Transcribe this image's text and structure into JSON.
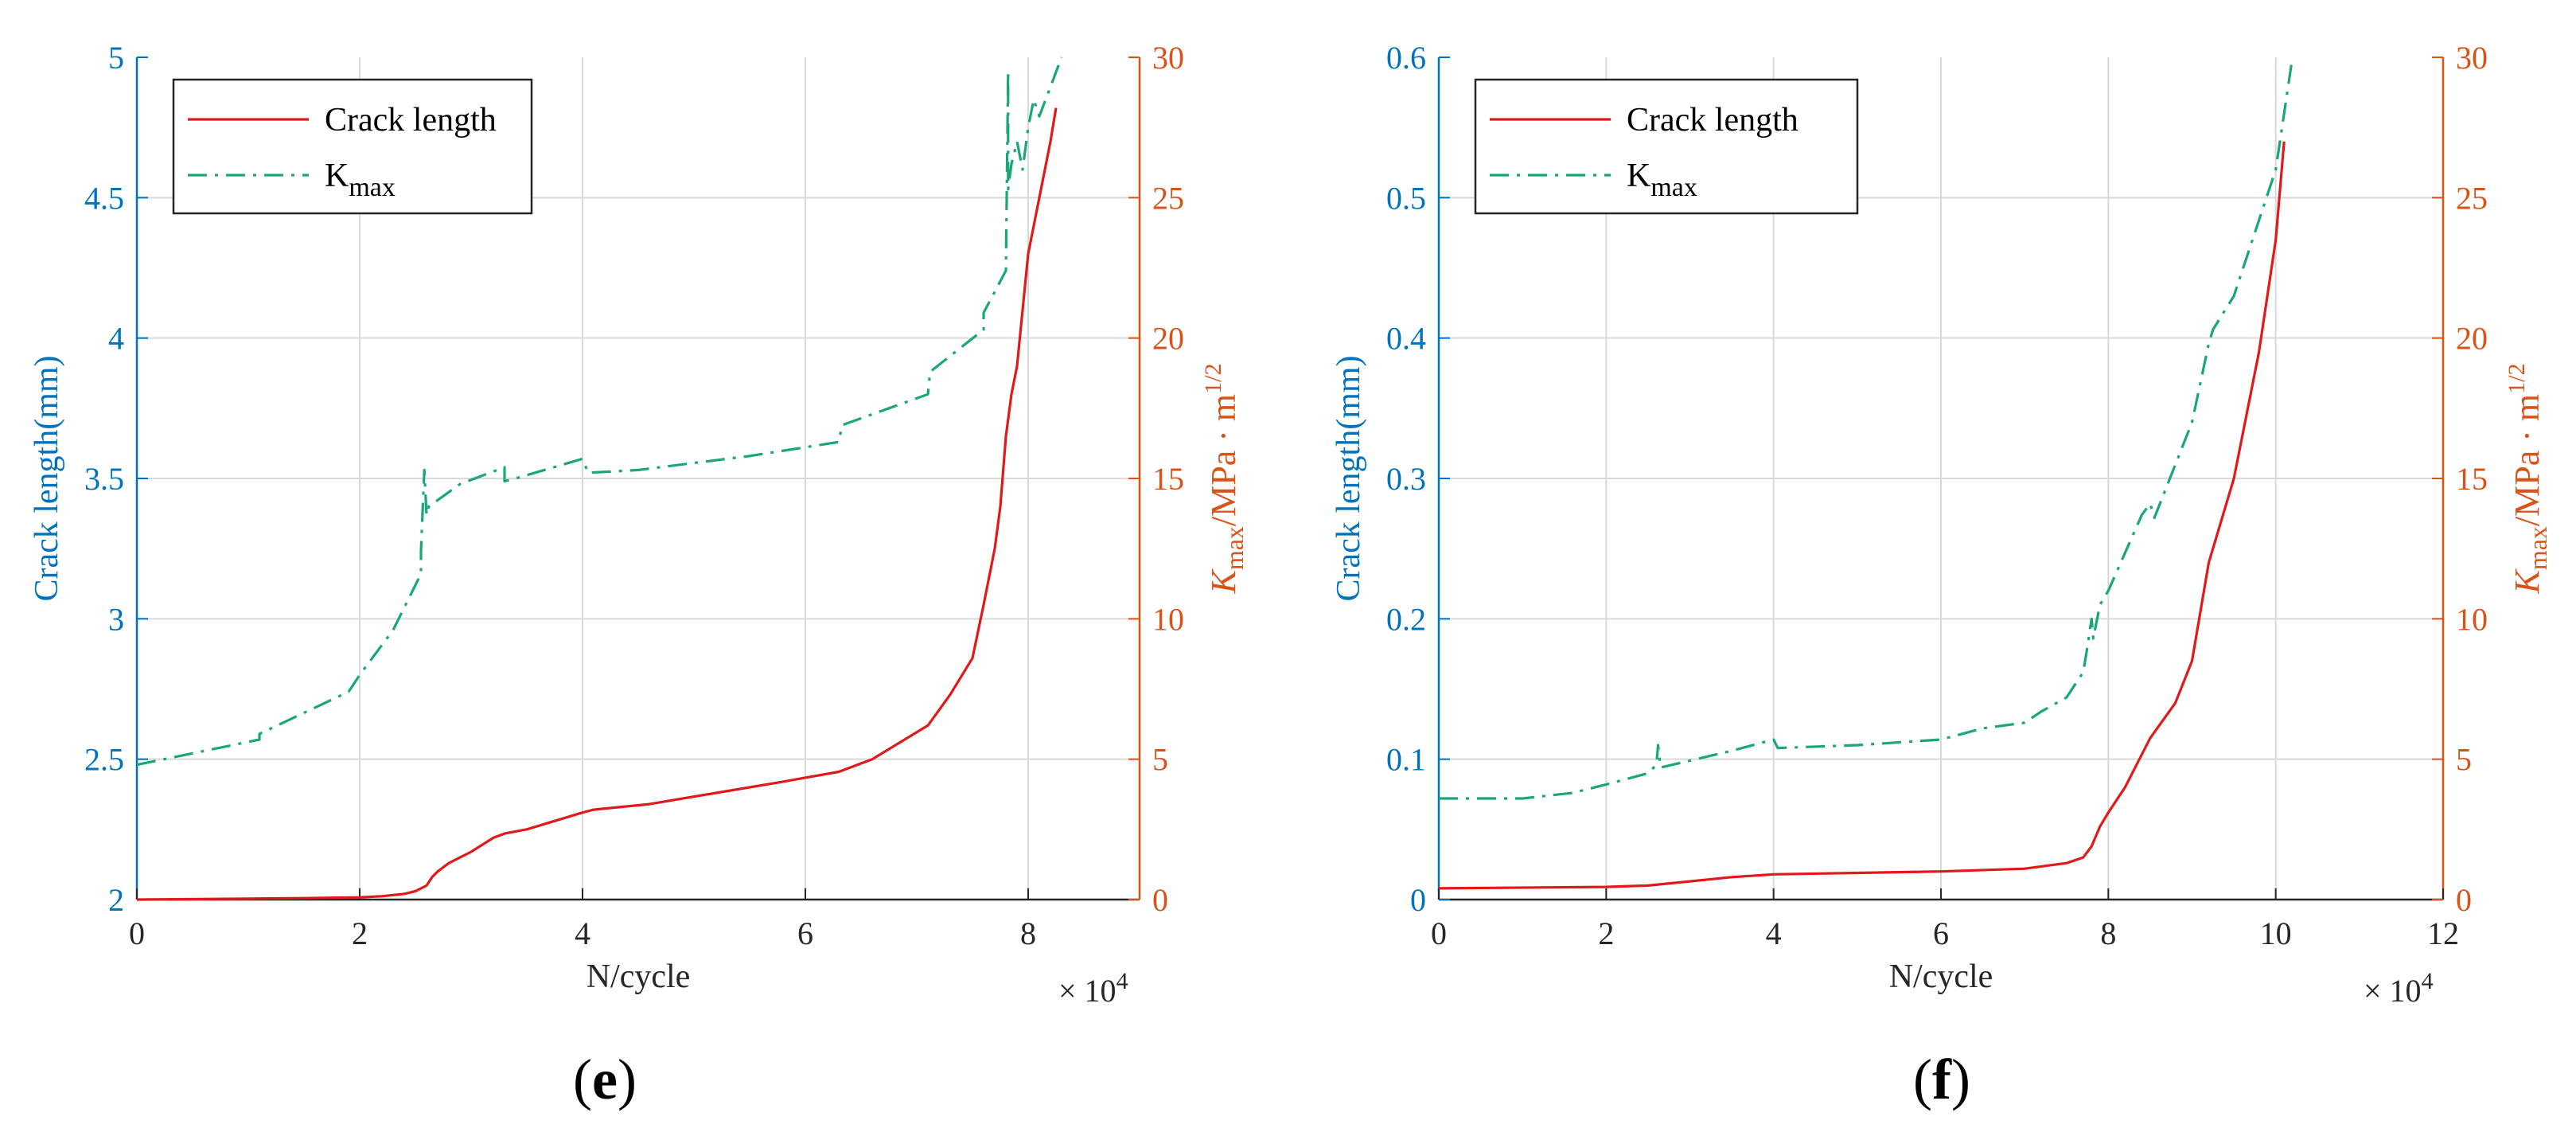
{
  "colors": {
    "left_axis": "#0072BD",
    "right_axis": "#D95319",
    "crack": "#E0191B",
    "kmax": "#1BA67A",
    "grid": "#D9D9D9",
    "axis_black": "#262626"
  },
  "chart_data": [
    {
      "type": "line",
      "panel_label": "(e)",
      "xlabel": "N/cycle",
      "x_exponent": "× 10",
      "x_exponent_power": "4",
      "xlim": [
        0,
        9
      ],
      "xticks": [
        0,
        2,
        4,
        6,
        8
      ],
      "xtick_labels": [
        "0",
        "2",
        "4",
        "6",
        "8"
      ],
      "ylabel_left": "Crack length(mm)",
      "ylim_left": [
        2,
        5
      ],
      "yticks_left": [
        2,
        2.5,
        3,
        3.5,
        4,
        4.5,
        5
      ],
      "ytick_labels_left": [
        "2",
        "2.5",
        "3",
        "3.5",
        "4",
        "4.5",
        "5"
      ],
      "ylabel_right": {
        "k": "K",
        "sub": "max",
        "rest": "/MPa · m",
        "sup": "1/2"
      },
      "ylim_right": [
        0,
        30
      ],
      "yticks_right": [
        0,
        5,
        10,
        15,
        20,
        25,
        30
      ],
      "ytick_labels_right": [
        "0",
        "5",
        "10",
        "15",
        "20",
        "25",
        "30"
      ],
      "legend": {
        "placement": "top-left",
        "crack_label": "Crack length",
        "kmax_label": "K",
        "kmax_sub": "max"
      },
      "series": [
        {
          "name": "Crack length",
          "axis": "left",
          "style": "solid",
          "x": [
            0,
            1,
            1.5,
            2,
            2.2,
            2.4,
            2.5,
            2.6,
            2.65,
            2.7,
            2.8,
            3.0,
            3.2,
            3.3,
            3.5,
            4.0,
            4.1,
            4.6,
            5.2,
            5.8,
            6.3,
            6.6,
            7.1,
            7.3,
            7.5,
            7.6,
            7.7,
            7.75,
            7.8,
            7.85,
            7.9,
            8.0,
            8.1,
            8.2,
            8.25
          ],
          "y": [
            2.0,
            2.003,
            2.005,
            2.008,
            2.012,
            2.02,
            2.03,
            2.05,
            2.08,
            2.1,
            2.13,
            2.17,
            2.22,
            2.235,
            2.25,
            2.31,
            2.32,
            2.34,
            2.38,
            2.42,
            2.455,
            2.5,
            2.62,
            2.73,
            2.86,
            3.05,
            3.25,
            3.4,
            3.65,
            3.8,
            3.9,
            4.3,
            4.5,
            4.7,
            4.82
          ]
        },
        {
          "name": "Kmax",
          "axis": "right",
          "style": "dashdot",
          "x": [
            0,
            1.1,
            1.1,
            1.9,
            2.0,
            2.3,
            2.55,
            2.55,
            2.58,
            2.6,
            2.62,
            2.9,
            3.3,
            3.3,
            3.4,
            4.0,
            4.05,
            4.5,
            5.5,
            6.3,
            6.33,
            7.1,
            7.12,
            7.6,
            7.6,
            7.8,
            7.82,
            7.82,
            7.85,
            7.9,
            7.95,
            8.0,
            8.05,
            8.1,
            8.3
          ],
          "y": [
            4.8,
            5.7,
            5.9,
            7.4,
            8.0,
            9.6,
            11.6,
            12.4,
            15.3,
            13.7,
            14.0,
            14.8,
            15.4,
            14.9,
            15.0,
            15.7,
            15.2,
            15.3,
            15.8,
            16.3,
            16.9,
            18.0,
            18.8,
            20.3,
            20.9,
            22.4,
            29.5,
            25.3,
            26.2,
            27.0,
            26.0,
            27.5,
            28.5,
            27.9,
            30.0
          ]
        }
      ]
    },
    {
      "type": "line",
      "panel_label": "(f)",
      "xlabel": "N/cycle",
      "x_exponent": "× 10",
      "x_exponent_power": "4",
      "xlim": [
        0,
        12
      ],
      "xticks": [
        0,
        2,
        4,
        6,
        8,
        10,
        12
      ],
      "xtick_labels": [
        "0",
        "2",
        "4",
        "6",
        "8",
        "10",
        "12"
      ],
      "ylabel_left": "Crack length(mm)",
      "ylim_left": [
        0,
        0.6
      ],
      "yticks_left": [
        0,
        0.1,
        0.2,
        0.3,
        0.4,
        0.5,
        0.6
      ],
      "ytick_labels_left": [
        "0",
        "0.1",
        "0.2",
        "0.3",
        "0.4",
        "0.5",
        "0.6"
      ],
      "ylabel_right": {
        "k": "K",
        "sub": "max",
        "rest": "/MPa · m",
        "sup": "1/2"
      },
      "ylim_right": [
        0,
        30
      ],
      "yticks_right": [
        0,
        5,
        10,
        15,
        20,
        25,
        30
      ],
      "ytick_labels_right": [
        "0",
        "5",
        "10",
        "15",
        "20",
        "25",
        "30"
      ],
      "legend": {
        "placement": "top-left",
        "crack_label": "Crack length",
        "kmax_label": "K",
        "kmax_sub": "max"
      },
      "series": [
        {
          "name": "Crack length",
          "axis": "left",
          "style": "solid",
          "x": [
            0,
            2,
            2.5,
            3,
            3.5,
            4,
            5,
            6,
            7,
            7.5,
            7.7,
            7.8,
            7.9,
            8.0,
            8.2,
            8.5,
            8.8,
            9.0,
            9.2,
            9.5,
            9.8,
            10.0,
            10.1
          ],
          "y": [
            0.008,
            0.009,
            0.01,
            0.013,
            0.016,
            0.018,
            0.019,
            0.02,
            0.022,
            0.026,
            0.03,
            0.038,
            0.052,
            0.062,
            0.08,
            0.115,
            0.14,
            0.17,
            0.24,
            0.3,
            0.39,
            0.47,
            0.54
          ]
        },
        {
          "name": "Kmax",
          "axis": "right",
          "style": "dashdot",
          "x": [
            0,
            1.0,
            1.6,
            2.0,
            2.5,
            2.6,
            2.62,
            2.65,
            3.5,
            4.0,
            4.05,
            5,
            6,
            6.5,
            7,
            7.2,
            7.5,
            7.7,
            7.75,
            7.8,
            7.82,
            7.9,
            8.0,
            8.4,
            8.5,
            8.55,
            9.0,
            9.2,
            9.25,
            9.5,
            10.0,
            10.2
          ],
          "y": [
            3.6,
            3.6,
            3.8,
            4.1,
            4.5,
            4.8,
            5.5,
            4.7,
            5.3,
            5.7,
            5.4,
            5.5,
            5.7,
            6.1,
            6.3,
            6.7,
            7.2,
            8.1,
            9.0,
            10.0,
            9.3,
            10.5,
            11.0,
            13.7,
            14.1,
            13.6,
            17.0,
            19.8,
            20.3,
            21.5,
            26.0,
            30.0
          ]
        }
      ]
    }
  ]
}
